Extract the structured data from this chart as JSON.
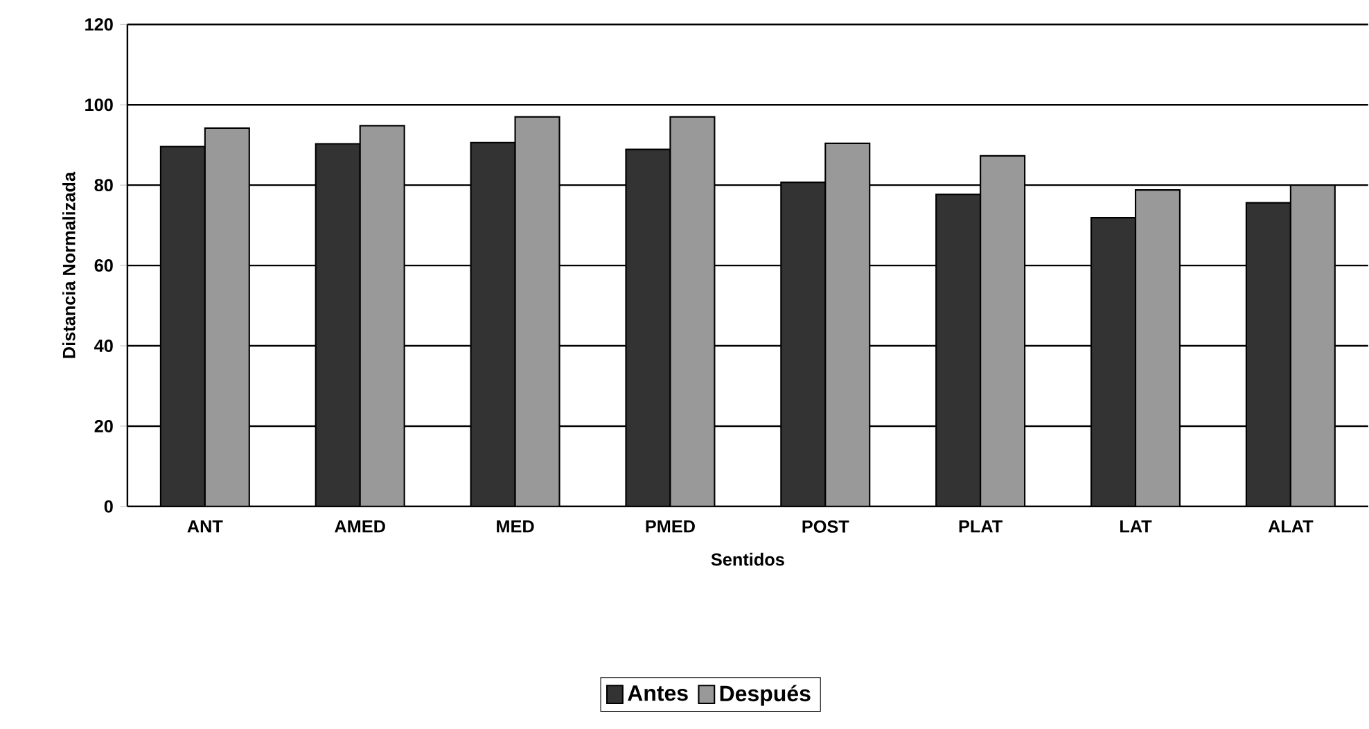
{
  "chart_data": {
    "type": "bar",
    "xlabel": "Sentidos",
    "ylabel": "Distancia Normalizada",
    "categories": [
      "ANT",
      "AMED",
      "MED",
      "PMED",
      "POST",
      "PLAT",
      "LAT",
      "ALAT"
    ],
    "series": [
      {
        "name": "Antes",
        "color": "#333333",
        "values": [
          89.6,
          90.3,
          90.6,
          88.9,
          80.7,
          77.7,
          71.9,
          75.6
        ]
      },
      {
        "name": "Después",
        "color": "#999999",
        "values": [
          94.2,
          94.8,
          97.0,
          97.0,
          90.4,
          87.3,
          78.8,
          80.0
        ]
      }
    ],
    "ylim": [
      0,
      120
    ],
    "yticks": [
      0,
      20,
      40,
      60,
      80,
      100,
      120
    ],
    "grid": "y",
    "legend": "bottom"
  }
}
